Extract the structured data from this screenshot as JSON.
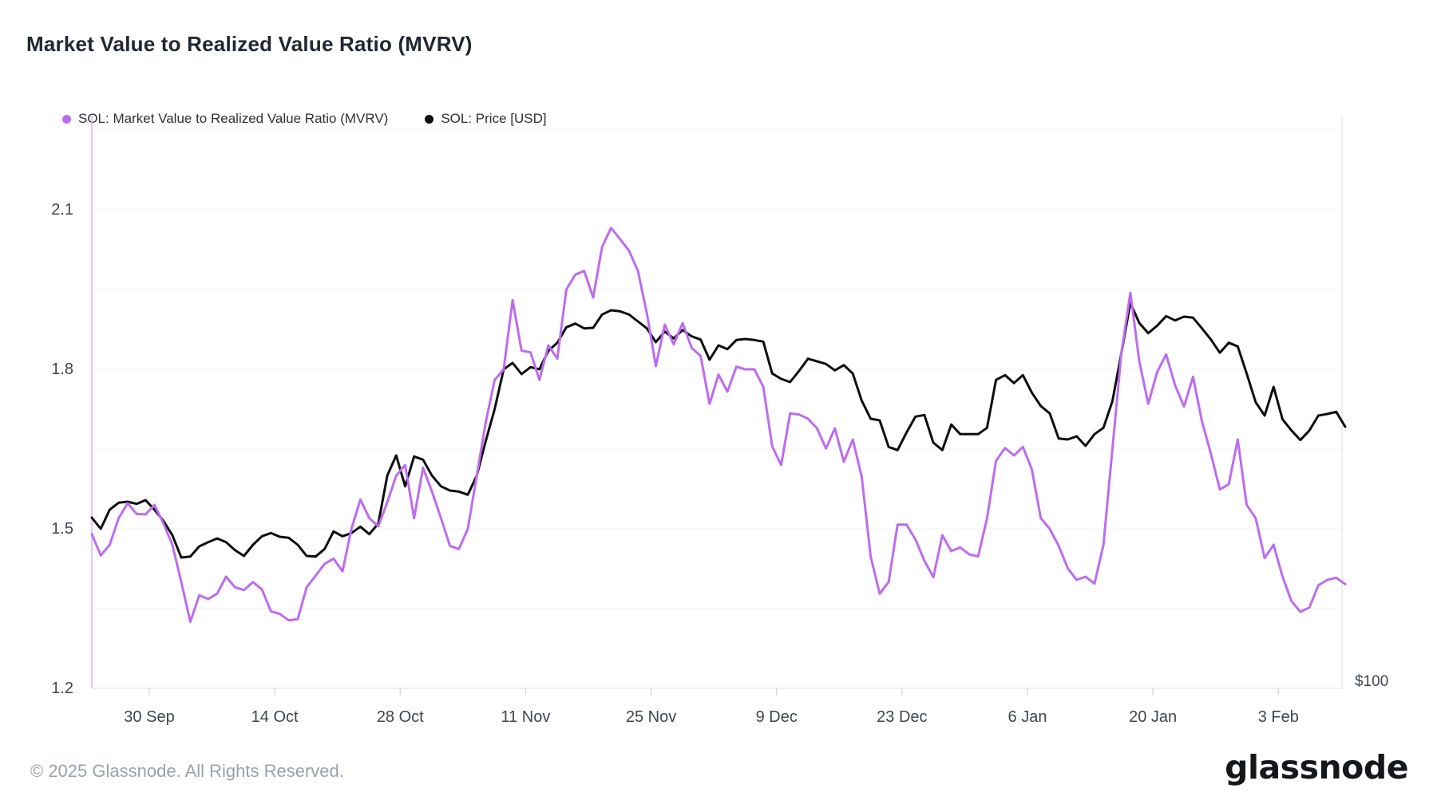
{
  "header": {
    "title": "Market Value to Realized Value Ratio (MVRV)"
  },
  "legend": {
    "items": [
      {
        "label": "SOL: Market Value to Realized Value Ratio (MVRV)",
        "color": "#bd6cef"
      },
      {
        "label": "SOL: Price [USD]",
        "color": "#0d0e10"
      }
    ]
  },
  "footer": {
    "copyright": "© 2025 Glassnode. All Rights Reserved.",
    "brand": "glassnode"
  },
  "chart_data": {
    "type": "line",
    "title": "Market Value to Realized Value Ratio (MVRV)",
    "x_tick_labels": [
      "30 Sep",
      "14 Oct",
      "28 Oct",
      "11 Nov",
      "25 Nov",
      "9 Dec",
      "23 Dec",
      "6 Jan",
      "20 Jan",
      "3 Feb"
    ],
    "y_tick_labels": [
      "2.1",
      "1.8",
      "1.5",
      "1.2"
    ],
    "y_tick_values": [
      2.1,
      1.8,
      1.5,
      1.2
    ],
    "gridline_values": [
      2.25,
      2.1,
      1.95,
      1.8,
      1.65,
      1.5,
      1.35,
      1.2
    ],
    "ylim": [
      1.2,
      2.28
    ],
    "right_axis_label": "$100",
    "legend_position": "top-left",
    "grid": "horizontal only, light gray",
    "cadence": "daily",
    "date_range": {
      "start": "24 Sep",
      "end": "11 Feb"
    },
    "series": [
      {
        "name": "SOL: Market Value to Realized Value Ratio (MVRV)",
        "color": "#bd6cef",
        "axis": "left",
        "values": [
          1.49,
          1.45,
          1.47,
          1.52,
          1.548,
          1.528,
          1.527,
          1.545,
          1.51,
          1.47,
          1.4,
          1.325,
          1.375,
          1.368,
          1.378,
          1.41,
          1.39,
          1.385,
          1.4,
          1.386,
          1.345,
          1.34,
          1.328,
          1.33,
          1.39,
          1.412,
          1.434,
          1.444,
          1.42,
          1.5,
          1.555,
          1.52,
          1.505,
          1.55,
          1.6,
          1.62,
          1.52,
          1.615,
          1.57,
          1.52,
          1.468,
          1.462,
          1.5,
          1.6,
          1.7,
          1.78,
          1.8,
          1.93,
          1.835,
          1.832,
          1.78,
          1.845,
          1.82,
          1.95,
          1.978,
          1.985,
          1.935,
          2.03,
          2.066,
          2.045,
          2.023,
          1.985,
          1.905,
          1.806,
          1.884,
          1.847,
          1.887,
          1.84,
          1.825,
          1.735,
          1.79,
          1.758,
          1.805,
          1.8,
          1.8,
          1.767,
          1.655,
          1.62,
          1.717,
          1.715,
          1.707,
          1.689,
          1.651,
          1.689,
          1.626,
          1.668,
          1.598,
          1.448,
          1.378,
          1.4,
          1.508,
          1.508,
          1.48,
          1.44,
          1.409,
          1.488,
          1.458,
          1.465,
          1.452,
          1.448,
          1.52,
          1.628,
          1.652,
          1.638,
          1.654,
          1.612,
          1.52,
          1.5,
          1.468,
          1.426,
          1.404,
          1.41,
          1.397,
          1.47,
          1.65,
          1.83,
          1.944,
          1.815,
          1.735,
          1.795,
          1.828,
          1.77,
          1.73,
          1.786,
          1.702,
          1.641,
          1.574,
          1.584,
          1.668,
          1.545,
          1.52,
          1.445,
          1.47,
          1.41,
          1.364,
          1.344,
          1.352,
          1.394,
          1.404,
          1.408,
          1.396
        ]
      },
      {
        "name": "SOL: Price [USD]",
        "color": "#0d0e10",
        "axis": "right",
        "axis_note": "price axis, only the $100 gridline label is visible; values below are the positions read on the left-hand scale as plotted",
        "values": [
          1.521,
          1.5,
          1.536,
          1.549,
          1.551,
          1.547,
          1.554,
          1.536,
          1.515,
          1.488,
          1.446,
          1.448,
          1.467,
          1.475,
          1.482,
          1.475,
          1.46,
          1.449,
          1.47,
          1.486,
          1.492,
          1.485,
          1.483,
          1.47,
          1.449,
          1.448,
          1.462,
          1.495,
          1.486,
          1.492,
          1.504,
          1.49,
          1.51,
          1.6,
          1.638,
          1.58,
          1.636,
          1.63,
          1.6,
          1.58,
          1.572,
          1.57,
          1.564,
          1.6,
          1.665,
          1.725,
          1.8,
          1.812,
          1.791,
          1.804,
          1.8,
          1.835,
          1.85,
          1.879,
          1.886,
          1.877,
          1.878,
          1.903,
          1.911,
          1.909,
          1.903,
          1.89,
          1.877,
          1.851,
          1.871,
          1.858,
          1.874,
          1.862,
          1.856,
          1.818,
          1.845,
          1.838,
          1.855,
          1.857,
          1.855,
          1.852,
          1.792,
          1.782,
          1.776,
          1.797,
          1.82,
          1.815,
          1.81,
          1.798,
          1.808,
          1.792,
          1.741,
          1.707,
          1.704,
          1.654,
          1.648,
          1.681,
          1.711,
          1.714,
          1.662,
          1.648,
          1.696,
          1.678,
          1.678,
          1.678,
          1.69,
          1.78,
          1.789,
          1.774,
          1.789,
          1.756,
          1.731,
          1.717,
          1.67,
          1.668,
          1.674,
          1.656,
          1.678,
          1.69,
          1.74,
          1.83,
          1.925,
          1.887,
          1.868,
          1.882,
          1.9,
          1.892,
          1.899,
          1.897,
          1.877,
          1.856,
          1.831,
          1.85,
          1.843,
          1.792,
          1.738,
          1.713,
          1.767,
          1.706,
          1.685,
          1.667,
          1.685,
          1.713,
          1.716,
          1.72,
          1.692
        ]
      }
    ]
  },
  "colors": {
    "grid": "#f3f3f6",
    "axis_line": "#e9e9ee",
    "left_axis_line": "#dcb5f8",
    "tick_mark": "#d9d9de",
    "axis_text": "#40454e"
  }
}
